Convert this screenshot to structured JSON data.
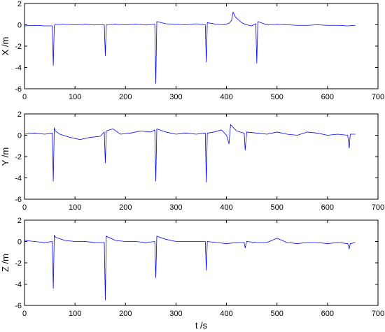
{
  "chart_data": [
    {
      "type": "line",
      "ylabel": "X /m",
      "xlabel": "",
      "xlim": [
        0,
        700
      ],
      "ylim": [
        -6,
        2
      ],
      "xticks": [
        0,
        100,
        200,
        300,
        400,
        500,
        600,
        700
      ],
      "yticks": [
        -6,
        -4,
        -2,
        0,
        2
      ],
      "series": [
        {
          "color": "#0000ff",
          "x": [
            0,
            20,
            40,
            55,
            57,
            59,
            61,
            80,
            100,
            120,
            140,
            158,
            160,
            162,
            180,
            200,
            220,
            240,
            258,
            260,
            262,
            280,
            300,
            320,
            340,
            358,
            360,
            362,
            380,
            395,
            405,
            410,
            413,
            418,
            423,
            430,
            440,
            450,
            458,
            460,
            462,
            480,
            500,
            520,
            540,
            560,
            580,
            600,
            620,
            640,
            655
          ],
          "y": [
            -0.1,
            -0.05,
            -0.1,
            -0.1,
            -3.8,
            -0.1,
            0.05,
            0.05,
            0.0,
            0.05,
            0.0,
            0.0,
            -2.9,
            0.0,
            0.05,
            0.0,
            0.05,
            0.0,
            0.05,
            -5.5,
            0.3,
            0.1,
            0.05,
            0.0,
            0.1,
            0.0,
            -3.5,
            0.2,
            0.05,
            0.0,
            0.15,
            0.4,
            1.2,
            0.7,
            0.5,
            0.2,
            0.0,
            -0.1,
            0.1,
            -3.6,
            0.3,
            0.0,
            0.05,
            0.0,
            -0.05,
            -0.05,
            0.0,
            -0.05,
            -0.05,
            -0.1,
            -0.05
          ]
        }
      ]
    },
    {
      "type": "line",
      "ylabel": "Y /m",
      "xlabel": "",
      "xlim": [
        0,
        700
      ],
      "ylim": [
        -6,
        2
      ],
      "xticks": [
        0,
        100,
        200,
        300,
        400,
        500,
        600,
        700
      ],
      "yticks": [
        -6,
        -4,
        -2,
        0,
        2
      ],
      "series": [
        {
          "color": "#0000ff",
          "x": [
            0,
            20,
            40,
            55,
            57,
            59,
            61,
            70,
            90,
            110,
            130,
            150,
            158,
            160,
            162,
            175,
            190,
            210,
            230,
            250,
            258,
            260,
            262,
            280,
            300,
            320,
            340,
            358,
            360,
            362,
            375,
            390,
            400,
            405,
            408,
            412,
            420,
            435,
            437,
            440,
            460,
            480,
            500,
            520,
            540,
            560,
            580,
            600,
            620,
            640,
            643,
            645,
            655
          ],
          "y": [
            0.1,
            0.2,
            0.1,
            0.2,
            -4.3,
            0.7,
            0.4,
            0.1,
            -0.2,
            -0.4,
            -0.2,
            -0.1,
            0.3,
            -2.6,
            0.4,
            0.6,
            0.1,
            0.2,
            0.4,
            0.3,
            0.5,
            -4.3,
            0.6,
            0.3,
            0.1,
            0.2,
            0.1,
            0.2,
            -4.4,
            0.2,
            0.3,
            0.5,
            0.0,
            -0.8,
            1.0,
            0.8,
            0.4,
            0.2,
            -1.4,
            0.3,
            0.2,
            0.1,
            0.3,
            0.1,
            0.0,
            0.3,
            0.2,
            0.0,
            0.1,
            0.0,
            -1.2,
            0.1,
            0.1
          ]
        }
      ]
    },
    {
      "type": "line",
      "ylabel": "Z /m",
      "xlabel": "t /s",
      "xlim": [
        0,
        700
      ],
      "ylim": [
        -6,
        2
      ],
      "xticks": [
        0,
        100,
        200,
        300,
        400,
        500,
        600,
        700
      ],
      "yticks": [
        -6,
        -4,
        -2,
        0,
        2
      ],
      "series": [
        {
          "color": "#0000ff",
          "x": [
            0,
            20,
            40,
            55,
            57,
            59,
            61,
            80,
            100,
            120,
            140,
            158,
            160,
            162,
            180,
            200,
            220,
            240,
            258,
            260,
            262,
            280,
            300,
            320,
            340,
            358,
            360,
            362,
            380,
            400,
            420,
            435,
            437,
            440,
            460,
            480,
            500,
            520,
            540,
            560,
            580,
            600,
            620,
            640,
            643,
            645,
            655
          ],
          "y": [
            0.1,
            0.0,
            -0.1,
            0.0,
            -4.4,
            0.6,
            0.4,
            0.1,
            0.0,
            0.0,
            -0.1,
            -0.1,
            -5.5,
            0.5,
            0.1,
            0.0,
            0.0,
            -0.1,
            0.0,
            -3.4,
            0.5,
            0.2,
            0.0,
            0.0,
            0.0,
            0.0,
            -2.7,
            0.0,
            -0.1,
            -0.2,
            -0.1,
            -0.1,
            -0.6,
            0.0,
            -0.1,
            -0.1,
            0.3,
            -0.1,
            -0.2,
            -0.1,
            -0.1,
            -0.2,
            -0.1,
            -0.2,
            -0.7,
            -0.2,
            -0.1
          ]
        }
      ]
    }
  ]
}
